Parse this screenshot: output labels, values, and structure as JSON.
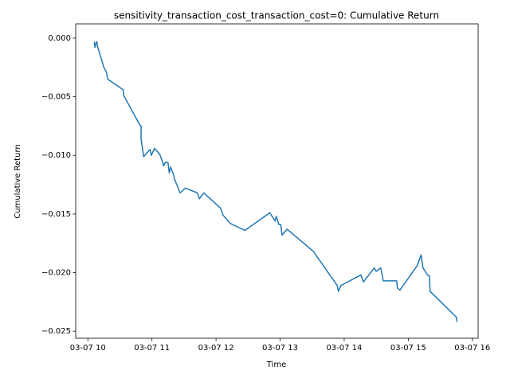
{
  "chart_data": {
    "type": "line",
    "title": "sensitivity_transaction_cost_transaction_cost=0: Cumulative Return",
    "x_label": "Time",
    "y_label": "Cumulative Return",
    "x": [
      10.1,
      10.11,
      10.12,
      10.14,
      10.15,
      10.25,
      10.29,
      10.31,
      10.55,
      10.56,
      10.81,
      10.83,
      10.83,
      10.87,
      10.97,
      10.99,
      11.04,
      11.12,
      11.17,
      11.18,
      11.21,
      11.25,
      11.27,
      11.29,
      11.34,
      11.35,
      11.44,
      11.52,
      11.71,
      11.74,
      11.81,
      12.07,
      12.11,
      12.22,
      12.45,
      12.84,
      12.92,
      12.94,
      12.98,
      13.01,
      13.03,
      13.11,
      13.52,
      13.89,
      13.91,
      13.95,
      14.26,
      14.3,
      14.47,
      14.5,
      14.57,
      14.61,
      14.8,
      14.82,
      14.83,
      14.87,
      15.14,
      15.2,
      15.23,
      15.3,
      15.33,
      15.34,
      15.75,
      15.76
    ],
    "series": [
      {
        "name": "Cumulative Return",
        "color": "#1f77b4",
        "values": [
          -0.0003,
          -0.0008,
          -0.0005,
          -0.0003,
          -0.0007,
          -0.0025,
          -0.0029,
          -0.0035,
          -0.0044,
          -0.0049,
          -0.0074,
          -0.0075,
          -0.0086,
          -0.0101,
          -0.0095,
          -0.01,
          -0.0094,
          -0.0099,
          -0.0106,
          -0.0109,
          -0.0106,
          -0.0106,
          -0.0115,
          -0.011,
          -0.0117,
          -0.012,
          -0.0132,
          -0.0128,
          -0.0132,
          -0.0137,
          -0.0132,
          -0.0145,
          -0.0151,
          -0.0158,
          -0.0164,
          -0.0149,
          -0.0156,
          -0.0152,
          -0.0159,
          -0.0159,
          -0.0168,
          -0.0163,
          -0.0182,
          -0.0211,
          -0.0216,
          -0.0211,
          -0.0202,
          -0.0208,
          -0.0196,
          -0.0199,
          -0.0196,
          -0.0207,
          -0.0207,
          -0.0207,
          -0.0213,
          -0.0215,
          -0.0194,
          -0.0185,
          -0.0196,
          -0.0202,
          -0.0203,
          -0.0216,
          -0.0238,
          -0.0242
        ]
      }
    ],
    "xlim": [
      9.81,
      16.09
    ],
    "ylim": [
      -0.0256,
      0.00122
    ],
    "xticks": [
      {
        "value": 10,
        "label": "03-07 10"
      },
      {
        "value": 11,
        "label": "03-07 11"
      },
      {
        "value": 12,
        "label": "03-07 12"
      },
      {
        "value": 13,
        "label": "03-07 13"
      },
      {
        "value": 14,
        "label": "03-07 14"
      },
      {
        "value": 15,
        "label": "03-07 15"
      },
      {
        "value": 16,
        "label": "03-07 16"
      }
    ],
    "yticks": [
      {
        "value": 0,
        "label": "0.000"
      },
      {
        "value": -0.005,
        "label": "−0.005"
      },
      {
        "value": -0.01,
        "label": "−0.010"
      },
      {
        "value": -0.015,
        "label": "−0.015"
      },
      {
        "value": -0.02,
        "label": "−0.020"
      },
      {
        "value": -0.025,
        "label": "−0.025"
      }
    ],
    "grid": false
  }
}
